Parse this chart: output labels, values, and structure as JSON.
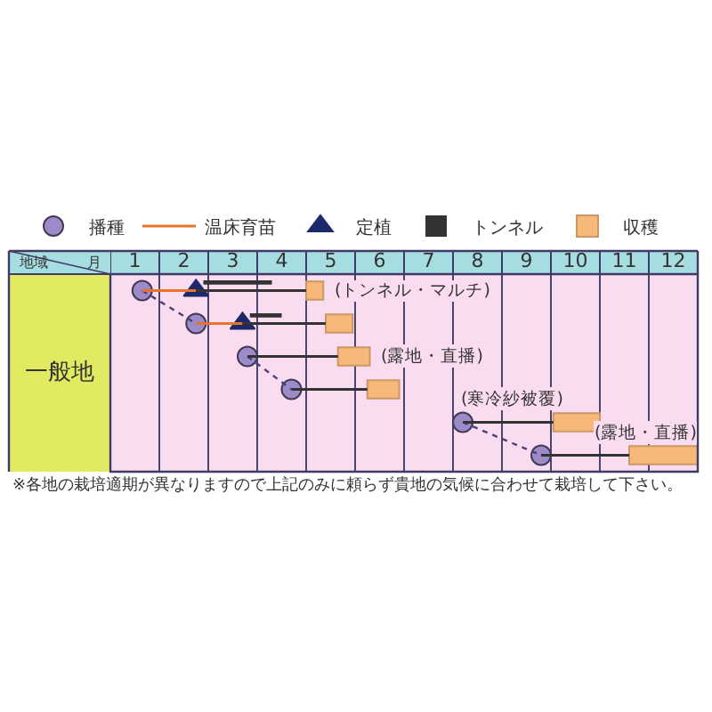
{
  "chart_data": {
    "type": "bar",
    "orientation": "horizontal",
    "xlabel": "月",
    "ylabel": "地域",
    "categories": [
      null,
      null,
      null,
      null,
      null,
      null
    ],
    "xlim": [
      1,
      13
    ],
    "xticks": [
      {
        "value": 1,
        "label": null
      },
      {
        "value": 1.5,
        "label": "1"
      },
      {
        "value": 2,
        "label": null
      },
      {
        "value": 2.5,
        "label": "2"
      },
      {
        "value": 3,
        "label": null
      },
      {
        "value": 3.5,
        "label": "3"
      },
      {
        "value": 4,
        "label": null
      },
      {
        "value": 4.5,
        "label": "4"
      },
      {
        "value": 5,
        "label": null
      },
      {
        "value": 5.5,
        "label": "5"
      },
      {
        "value": 6,
        "label": null
      },
      {
        "value": 6.5,
        "label": "6"
      },
      {
        "value": 7,
        "label": null
      },
      {
        "value": 7.5,
        "label": "7"
      },
      {
        "value": 8,
        "label": null
      },
      {
        "value": 8.5,
        "label": "8"
      },
      {
        "value": 9,
        "label": null
      },
      {
        "value": 9.5,
        "label": "9"
      },
      {
        "value": 10,
        "label": null
      },
      {
        "value": 10.5,
        "label": "10"
      },
      {
        "value": 11,
        "label": null
      },
      {
        "value": 11.5,
        "label": "11"
      },
      {
        "value": 12,
        "label": null
      },
      {
        "value": 12.5,
        "label": "12"
      },
      {
        "value": 13,
        "label": null
      }
    ],
    "grid": "x",
    "legend": "top",
    "series": [
      {
        "name": "播種",
        "type": "scatter",
        "marker": "circle",
        "color": "#9d8bc9",
        "values": [
          1.65,
          2.75,
          3.8,
          4.7,
          8.2,
          9.8
        ],
        "value_labels": [
          null,
          null,
          null,
          null,
          "(寒冷紗被覆)",
          null
        ]
      },
      {
        "name": "温床育苗",
        "type": "bar",
        "line_style": "solid",
        "color": "#e8742c",
        "base": [
          1.65,
          2.75,
          null,
          null,
          null,
          null
        ],
        "values": [
          1.1,
          0.95,
          null,
          null,
          null,
          null
        ]
      },
      {
        "name": "定植",
        "type": "scatter",
        "marker": "triangle",
        "color": "#1c2a6c",
        "values": [
          2.75,
          3.7,
          null,
          null,
          null,
          null
        ]
      },
      {
        "name": "トンネル",
        "type": "bar",
        "line_style": "dashed",
        "color": "#333333",
        "base": [
          2.9,
          3.85,
          null,
          null,
          null,
          null
        ],
        "values": [
          1.4,
          0.65,
          null,
          null,
          null,
          null
        ]
      },
      {
        "name": "収穫",
        "type": "bar",
        "color": "#f8b87a",
        "base": [
          5.0,
          5.4,
          5.65,
          6.25,
          10.05,
          11.6
        ],
        "values": [
          0.35,
          0.55,
          0.65,
          0.65,
          0.95,
          1.4
        ],
        "value_labels": [
          "(トンネル・マルチ)",
          null,
          "(露地・直播)",
          null,
          null,
          "(露地・直播)"
        ]
      },
      {
        "type": "bar",
        "line_style": "solid",
        "color": "#333333",
        "base": [
          2.75,
          3.7,
          3.8,
          4.7,
          8.2,
          9.8
        ],
        "values": [
          2.25,
          1.7,
          1.85,
          1.55,
          1.85,
          1.8
        ]
      },
      {
        "type": "line",
        "line_style": "dotted",
        "marker": "none",
        "color": "#4a3f7a",
        "values": [
          1.65,
          2.75,
          null,
          null,
          null,
          null
        ]
      },
      {
        "type": "line",
        "line_style": "dotted",
        "marker": "none",
        "color": "#4a3f7a",
        "values": [
          null,
          null,
          3.8,
          4.7,
          null,
          null
        ]
      },
      {
        "type": "line",
        "line_style": "dotted",
        "marker": "none",
        "color": "#4a3f7a",
        "values": [
          null,
          null,
          null,
          null,
          8.2,
          9.8
        ]
      }
    ],
    "annotations": [
      "一般地",
      "※各地の栽培適期が異なりますので上記のみに頼らず貴地の気候に合わせて栽培して下さい。"
    ]
  }
}
